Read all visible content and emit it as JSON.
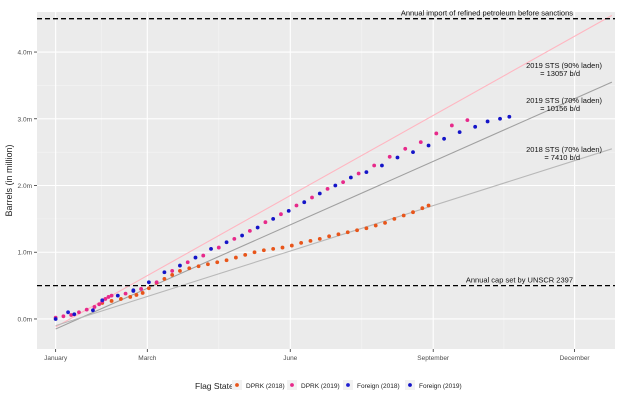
{
  "chart_data": {
    "type": "scatter",
    "title": "",
    "xlabel": "",
    "ylabel": "Barrels (in million)",
    "x_unit": "day of year",
    "x_ticks": [
      {
        "label": "January",
        "value": 0
      },
      {
        "label": "March",
        "value": 59
      },
      {
        "label": "June",
        "value": 151
      },
      {
        "label": "September",
        "value": 243
      },
      {
        "label": "December",
        "value": 334
      }
    ],
    "xlim": [
      -12,
      360
    ],
    "y_ticks": [
      {
        "label": "0.0m",
        "value": 0
      },
      {
        "label": "1.0m",
        "value": 1
      },
      {
        "label": "2.0m",
        "value": 2
      },
      {
        "label": "3.0m",
        "value": 3
      },
      {
        "label": "4.0m",
        "value": 4
      }
    ],
    "ylim": [
      -0.45,
      4.6
    ],
    "grid": true,
    "background": "#ebebeb",
    "reference_lines": [
      {
        "label": "Annual import of refined petroleum before sanctions",
        "y": 4.5
      },
      {
        "label": "Annual cap set by UNSCR 2397",
        "y": 0.5
      }
    ],
    "trend_lines": [
      {
        "label_line1": "2019 STS (90% laden)",
        "label_line2": "= 13057 b/d",
        "color": "#ffb6c1",
        "x": [
          0,
          358
        ],
        "y": [
          -0.12,
          4.55
        ]
      },
      {
        "label_line1": "2019 STS (70% laden)",
        "label_line2": "= 10156 b/d",
        "color": "#a0a0a0",
        "x": [
          0,
          358
        ],
        "y": [
          -0.15,
          3.55
        ]
      },
      {
        "label_line1": "2018 STS (70% laden)",
        "label_line2": "= 7410 b/d",
        "color": "#b8b8b8",
        "x": [
          0,
          358
        ],
        "y": [
          -0.1,
          2.55
        ]
      }
    ],
    "series": [
      {
        "name": "DPRK (2018)",
        "color": "#e8551a",
        "x": [
          30,
          36,
          42,
          48,
          52,
          56,
          60,
          65,
          70,
          75,
          80,
          86,
          92,
          98,
          104,
          110,
          116,
          122,
          128,
          134,
          140,
          146,
          152,
          158,
          164,
          170,
          176,
          182,
          188,
          194,
          200,
          206,
          212,
          218,
          224,
          230,
          236,
          240
        ],
        "y": [
          0.24,
          0.27,
          0.3,
          0.33,
          0.36,
          0.39,
          0.46,
          0.54,
          0.6,
          0.66,
          0.72,
          0.76,
          0.79,
          0.82,
          0.85,
          0.88,
          0.92,
          0.96,
          1.0,
          1.03,
          1.05,
          1.07,
          1.1,
          1.14,
          1.17,
          1.2,
          1.24,
          1.27,
          1.3,
          1.33,
          1.36,
          1.4,
          1.44,
          1.5,
          1.55,
          1.6,
          1.66,
          1.7
        ]
      },
      {
        "name": "DPRK (2019)",
        "color": "#e7298a",
        "x": [
          0,
          5,
          10,
          15,
          20,
          25,
          28,
          30,
          32,
          34,
          36,
          45,
          55,
          65,
          75,
          85,
          95,
          105,
          115,
          125,
          135,
          145,
          155,
          165,
          175,
          185,
          195,
          205,
          215,
          225,
          235,
          245,
          255,
          265
        ],
        "y": [
          0.02,
          0.04,
          0.06,
          0.1,
          0.14,
          0.18,
          0.22,
          0.26,
          0.3,
          0.33,
          0.35,
          0.38,
          0.45,
          0.55,
          0.72,
          0.85,
          0.95,
          1.07,
          1.2,
          1.32,
          1.45,
          1.57,
          1.7,
          1.82,
          1.95,
          2.05,
          2.18,
          2.3,
          2.43,
          2.55,
          2.65,
          2.78,
          2.9,
          2.98
        ]
      },
      {
        "name": "Foreign (2018)",
        "color": "#1f1fd1",
        "x": [
          8,
          30,
          50
        ],
        "y": [
          0.1,
          0.28,
          0.42
        ]
      },
      {
        "name": "Foreign (2019)",
        "color": "#1414c8",
        "x": [
          0,
          12,
          24,
          40,
          50,
          60,
          70,
          80,
          90,
          100,
          110,
          120,
          130,
          140,
          150,
          160,
          170,
          180,
          190,
          200,
          210,
          220,
          230,
          240,
          250,
          260,
          270,
          278,
          286,
          292
        ],
        "y": [
          0.0,
          0.07,
          0.13,
          0.35,
          0.43,
          0.55,
          0.7,
          0.8,
          0.92,
          1.05,
          1.15,
          1.25,
          1.37,
          1.5,
          1.62,
          1.75,
          1.88,
          2.0,
          2.12,
          2.2,
          2.3,
          2.42,
          2.5,
          2.6,
          2.7,
          2.8,
          2.88,
          2.96,
          3.0,
          3.03
        ]
      }
    ],
    "legend": {
      "title": "Flag State",
      "placement": "bottom"
    }
  }
}
